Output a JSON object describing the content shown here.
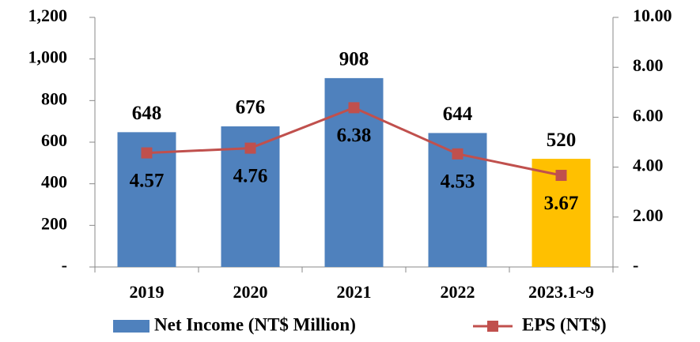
{
  "chart_data": {
    "type": "bar_line",
    "categories": [
      "2019",
      "2020",
      "2021",
      "2022",
      "2023.1~9"
    ],
    "series": [
      {
        "name": "Net Income (NT$ Million)",
        "type": "bar",
        "color": "#4f81bd",
        "colors": [
          "#4f81bd",
          "#4f81bd",
          "#4f81bd",
          "#4f81bd",
          "#ffc000"
        ],
        "values": [
          648,
          676,
          908,
          644,
          520
        ]
      },
      {
        "name": "EPS (NT$)",
        "type": "line",
        "axis": "y2",
        "color": "#c0504d",
        "values": [
          4.57,
          4.76,
          6.38,
          4.53,
          3.67
        ]
      }
    ],
    "ylim": [
      0,
      1200
    ],
    "yticks": [
      {
        "value": 0,
        "label": "-"
      },
      200,
      400,
      600,
      800,
      {
        "value": 1000,
        "label": "1,000"
      },
      {
        "value": 1200,
        "label": "1,200"
      }
    ],
    "y2lim": [
      0,
      10
    ],
    "y2ticks": [
      {
        "value": 0,
        "label": "-"
      },
      {
        "value": 2,
        "label": "2.00"
      },
      {
        "value": 4,
        "label": "4.00"
      },
      {
        "value": 6,
        "label": "6.00"
      },
      {
        "value": 8,
        "label": "8.00"
      },
      {
        "value": 10,
        "label": "10.00"
      }
    ],
    "grid": false
  }
}
